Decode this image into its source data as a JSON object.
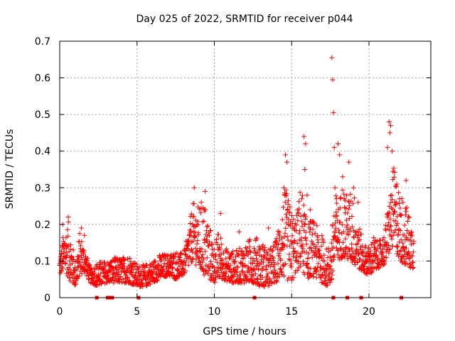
{
  "chart_data": {
    "type": "scatter",
    "title": "Day 025 of 2022, SRMTID for receiver p044",
    "xlabel": "GPS time / hours",
    "ylabel": "SRMTID / TECUs",
    "xlim": [
      0,
      24
    ],
    "ylim": [
      0,
      0.7
    ],
    "x_ticks": [
      "0",
      "5",
      "10",
      "15",
      "20"
    ],
    "x_tick_values": [
      0,
      5,
      10,
      15,
      20
    ],
    "y_ticks": [
      "0",
      "0.1",
      "0.2",
      "0.3",
      "0.4",
      "0.5",
      "0.6",
      "0.7"
    ],
    "y_tick_values": [
      0,
      0.1,
      0.2,
      0.3,
      0.4,
      0.5,
      0.6,
      0.7
    ],
    "grid": true,
    "series": [
      {
        "name": "SRMTID",
        "color": "#ff0000",
        "marker": "plus",
        "envelope": {
          "x": [
            0.0,
            0.3,
            0.6,
            1.0,
            1.3,
            1.6,
            2.0,
            2.5,
            3.0,
            3.5,
            4.0,
            4.5,
            5.0,
            5.5,
            6.0,
            6.5,
            7.0,
            7.5,
            8.0,
            8.3,
            8.6,
            9.0,
            9.3,
            9.6,
            10.0,
            10.3,
            10.6,
            11.0,
            11.5,
            12.0,
            12.5,
            13.0,
            13.5,
            14.0,
            14.3,
            14.6,
            15.0,
            15.3,
            15.6,
            16.0,
            16.3,
            16.6,
            17.0,
            17.3,
            17.6,
            17.8,
            18.0,
            18.3,
            18.6,
            19.0,
            19.3,
            19.6,
            20.0,
            20.3,
            20.6,
            21.0,
            21.3,
            21.6,
            22.0,
            22.3,
            22.6,
            22.9
          ],
          "low": [
            0.06,
            0.08,
            0.05,
            0.03,
            0.06,
            0.07,
            0.04,
            0.03,
            0.04,
            0.04,
            0.04,
            0.04,
            0.03,
            0.03,
            0.04,
            0.05,
            0.06,
            0.05,
            0.06,
            0.08,
            0.1,
            0.08,
            0.06,
            0.05,
            0.04,
            0.05,
            0.05,
            0.04,
            0.04,
            0.04,
            0.04,
            0.03,
            0.03,
            0.04,
            0.06,
            0.05,
            0.04,
            0.07,
            0.08,
            0.05,
            0.06,
            0.05,
            0.04,
            0.03,
            0.04,
            0.09,
            0.1,
            0.11,
            0.1,
            0.09,
            0.08,
            0.07,
            0.06,
            0.07,
            0.08,
            0.09,
            0.12,
            0.14,
            0.1,
            0.09,
            0.08,
            0.08
          ],
          "high": [
            0.11,
            0.19,
            0.21,
            0.1,
            0.18,
            0.14,
            0.08,
            0.1,
            0.1,
            0.11,
            0.11,
            0.12,
            0.09,
            0.09,
            0.1,
            0.12,
            0.12,
            0.13,
            0.12,
            0.18,
            0.26,
            0.25,
            0.28,
            0.22,
            0.14,
            0.19,
            0.14,
            0.13,
            0.13,
            0.15,
            0.17,
            0.16,
            0.13,
            0.16,
            0.24,
            0.3,
            0.24,
            0.22,
            0.32,
            0.2,
            0.22,
            0.2,
            0.17,
            0.13,
            0.18,
            0.3,
            0.25,
            0.32,
            0.28,
            0.3,
            0.22,
            0.15,
            0.14,
            0.17,
            0.15,
            0.18,
            0.27,
            0.36,
            0.29,
            0.27,
            0.23,
            0.19
          ]
        },
        "spikes": [
          [
            0.1,
            0.12
          ],
          [
            0.2,
            0.2
          ],
          [
            0.55,
            0.22
          ],
          [
            1.4,
            0.19
          ],
          [
            1.6,
            0.17
          ],
          [
            8.7,
            0.3
          ],
          [
            9.4,
            0.29
          ],
          [
            10.4,
            0.23
          ],
          [
            11.6,
            0.18
          ],
          [
            12.7,
            0.16
          ],
          [
            13.5,
            0.19
          ],
          [
            14.6,
            0.39
          ],
          [
            14.7,
            0.37
          ],
          [
            14.5,
            0.3
          ],
          [
            14.8,
            0.2
          ],
          [
            15.8,
            0.44
          ],
          [
            15.9,
            0.42
          ],
          [
            15.85,
            0.35
          ],
          [
            16.0,
            0.28
          ],
          [
            16.2,
            0.24
          ],
          [
            17.6,
            0.655
          ],
          [
            17.65,
            0.595
          ],
          [
            17.7,
            0.505
          ],
          [
            17.75,
            0.41
          ],
          [
            17.8,
            0.3
          ],
          [
            17.9,
            0.27
          ],
          [
            18.0,
            0.42
          ],
          [
            18.1,
            0.39
          ],
          [
            18.3,
            0.33
          ],
          [
            18.7,
            0.37
          ],
          [
            19.0,
            0.3
          ],
          [
            19.3,
            0.26
          ],
          [
            21.3,
            0.48
          ],
          [
            21.4,
            0.47
          ],
          [
            21.35,
            0.45
          ],
          [
            21.2,
            0.41
          ],
          [
            21.5,
            0.4
          ],
          [
            21.8,
            0.31
          ],
          [
            22.4,
            0.32
          ]
        ],
        "zero_markers": [
          2.4,
          3.1,
          3.3,
          3.4,
          5.1,
          12.6,
          17.7,
          18.6,
          19.5,
          22.1
        ]
      }
    ]
  }
}
